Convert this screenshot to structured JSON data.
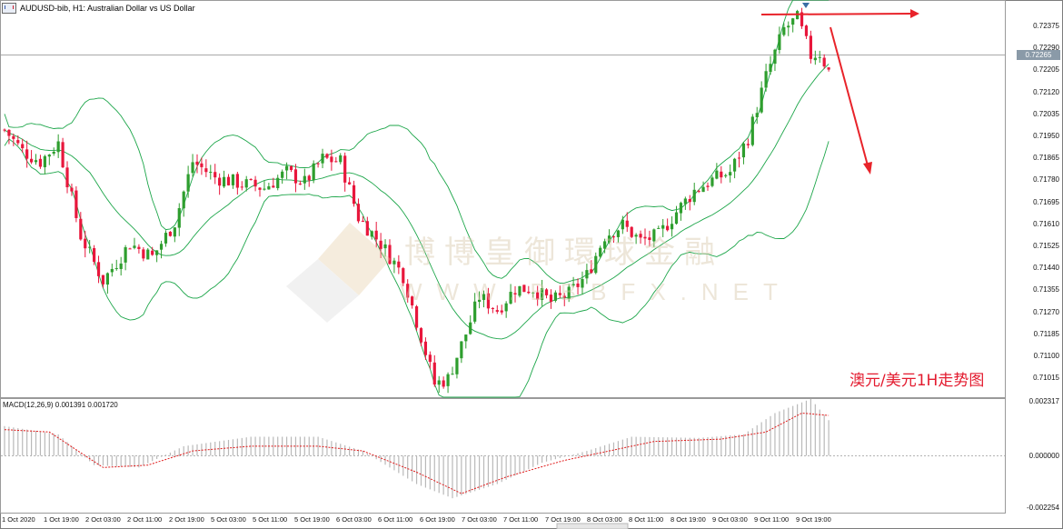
{
  "window": {
    "title": "AUDUSD-bib, H1:  Australian Dollar vs US Dollar"
  },
  "annotation_text": "澳元/美元1H走势图",
  "watermark": {
    "cn": "博博皇御環球金融",
    "en": "WWW.BBBFX.NET"
  },
  "colors": {
    "bull": "#2e9e2e",
    "bear": "#e8173c",
    "band": "#1da64a",
    "macd_signal": "#e01b1b",
    "macd_hist": "#b9b9b9",
    "arrow": "#e8232a"
  },
  "price_axis": {
    "labels": [
      "0.72375",
      "0.72290",
      "0.72205",
      "0.72120",
      "0.72035",
      "0.71950",
      "0.71865",
      "0.71780",
      "0.71695",
      "0.71610",
      "0.71525",
      "0.71440",
      "0.71355",
      "0.71270",
      "0.71185",
      "0.71100",
      "0.71015"
    ],
    "current": "0.72265"
  },
  "macd_axis": {
    "labels": [
      "0.002317",
      "0.000000",
      "-0.002254"
    ]
  },
  "time_axis": {
    "labels": [
      "1 Oct 2020",
      "1 Oct 19:00",
      "2 Oct 03:00",
      "2 Oct 11:00",
      "2 Oct 19:00",
      "5 Oct 03:00",
      "5 Oct 11:00",
      "5 Oct 19:00",
      "6 Oct 03:00",
      "6 Oct 11:00",
      "6 Oct 19:00",
      "7 Oct 03:00",
      "7 Oct 11:00",
      "7 Oct 19:00",
      "8 Oct 03:00",
      "8 Oct 11:00",
      "8 Oct 19:00",
      "9 Oct 03:00",
      "9 Oct 11:00",
      "9 Oct 19:00"
    ]
  },
  "chart_data": [
    {
      "type": "candlestick",
      "title": "AUDUSD-bib, H1:  Australian Dollar vs US Dollar",
      "ylim": [
        0.7097,
        0.7247
      ],
      "current_price": 0.72265,
      "series_style": "bollinger bands (green) over candlesticks",
      "close_anchors": [
        {
          "i": 0,
          "v": 0.7198
        },
        {
          "i": 4,
          "v": 0.719
        },
        {
          "i": 8,
          "v": 0.7186
        },
        {
          "i": 12,
          "v": 0.7193
        },
        {
          "i": 17,
          "v": 0.7158
        },
        {
          "i": 22,
          "v": 0.7141
        },
        {
          "i": 28,
          "v": 0.7155
        },
        {
          "i": 33,
          "v": 0.715
        },
        {
          "i": 38,
          "v": 0.7163
        },
        {
          "i": 42,
          "v": 0.7186
        },
        {
          "i": 47,
          "v": 0.718
        },
        {
          "i": 52,
          "v": 0.7178
        },
        {
          "i": 58,
          "v": 0.7176
        },
        {
          "i": 63,
          "v": 0.7182
        },
        {
          "i": 67,
          "v": 0.7178
        },
        {
          "i": 71,
          "v": 0.7187
        },
        {
          "i": 75,
          "v": 0.7186
        },
        {
          "i": 79,
          "v": 0.7165
        },
        {
          "i": 84,
          "v": 0.7155
        },
        {
          "i": 89,
          "v": 0.7143
        },
        {
          "i": 93,
          "v": 0.712
        },
        {
          "i": 96,
          "v": 0.7102
        },
        {
          "i": 99,
          "v": 0.7104
        },
        {
          "i": 103,
          "v": 0.7121
        },
        {
          "i": 106,
          "v": 0.7135
        },
        {
          "i": 110,
          "v": 0.713
        },
        {
          "i": 114,
          "v": 0.7138
        },
        {
          "i": 118,
          "v": 0.7138
        },
        {
          "i": 122,
          "v": 0.7133
        },
        {
          "i": 126,
          "v": 0.7136
        },
        {
          "i": 130,
          "v": 0.7143
        },
        {
          "i": 134,
          "v": 0.7158
        },
        {
          "i": 138,
          "v": 0.7162
        },
        {
          "i": 142,
          "v": 0.7156
        },
        {
          "i": 146,
          "v": 0.7158
        },
        {
          "i": 150,
          "v": 0.7167
        },
        {
          "i": 154,
          "v": 0.7175
        },
        {
          "i": 158,
          "v": 0.7179
        },
        {
          "i": 162,
          "v": 0.7182
        },
        {
          "i": 166,
          "v": 0.7195
        },
        {
          "i": 170,
          "v": 0.7218
        },
        {
          "i": 174,
          "v": 0.7236
        },
        {
          "i": 177,
          "v": 0.724
        },
        {
          "i": 180,
          "v": 0.7226
        },
        {
          "i": 182,
          "v": 0.7227
        },
        {
          "i": 184,
          "v": 0.722
        }
      ],
      "markers": {
        "resistance_level": 0.72425,
        "arrow_target": 0.7182
      }
    },
    {
      "type": "line",
      "title": "MACD(12,26,9) 0.001391 0.001720",
      "ylim": [
        -0.002254,
        0.002317
      ],
      "histogram_anchors": [
        {
          "i": 0,
          "v": 0.00125
        },
        {
          "i": 12,
          "v": 0.0009
        },
        {
          "i": 20,
          "v": -0.0004
        },
        {
          "i": 30,
          "v": -0.0005
        },
        {
          "i": 40,
          "v": 0.0004
        },
        {
          "i": 55,
          "v": 0.0008
        },
        {
          "i": 70,
          "v": 0.0008
        },
        {
          "i": 80,
          "v": 0.0002
        },
        {
          "i": 92,
          "v": -0.0012
        },
        {
          "i": 100,
          "v": -0.0018
        },
        {
          "i": 110,
          "v": -0.0012
        },
        {
          "i": 120,
          "v": -0.0003
        },
        {
          "i": 130,
          "v": 0.0002
        },
        {
          "i": 140,
          "v": 0.0008
        },
        {
          "i": 155,
          "v": 0.00075
        },
        {
          "i": 165,
          "v": 0.0009
        },
        {
          "i": 172,
          "v": 0.0018
        },
        {
          "i": 180,
          "v": 0.0024
        },
        {
          "i": 184,
          "v": 0.0015
        }
      ],
      "signal_anchors": [
        {
          "i": 0,
          "v": 0.0011
        },
        {
          "i": 10,
          "v": 0.001
        },
        {
          "i": 22,
          "v": -0.0005
        },
        {
          "i": 32,
          "v": -0.0004
        },
        {
          "i": 42,
          "v": 0.0002
        },
        {
          "i": 55,
          "v": 0.0004
        },
        {
          "i": 70,
          "v": 0.0004
        },
        {
          "i": 80,
          "v": 0.0002
        },
        {
          "i": 92,
          "v": -0.0007
        },
        {
          "i": 102,
          "v": -0.0016
        },
        {
          "i": 112,
          "v": -0.0009
        },
        {
          "i": 125,
          "v": -0.0002
        },
        {
          "i": 135,
          "v": 0.0002
        },
        {
          "i": 145,
          "v": 0.0006
        },
        {
          "i": 160,
          "v": 0.0007
        },
        {
          "i": 170,
          "v": 0.001
        },
        {
          "i": 178,
          "v": 0.0018
        },
        {
          "i": 184,
          "v": 0.0017
        }
      ]
    }
  ]
}
